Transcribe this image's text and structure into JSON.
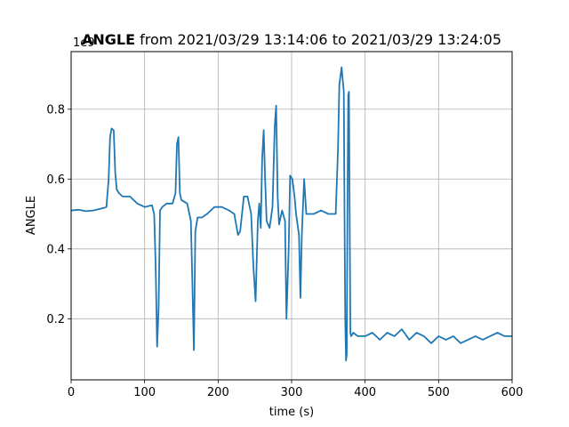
{
  "chart_data": {
    "type": "line",
    "title_bold": "ANGLE",
    "title_rest": " from 2021/03/29 13:14:06 to 2021/03/29 13:24:05",
    "xlabel": "time (s)",
    "ylabel": "ANGLE",
    "y_offset_label": "1e9",
    "xlim": [
      0,
      600
    ],
    "ylim": [
      0.025,
      0.965
    ],
    "xticks": [
      0,
      100,
      200,
      300,
      400,
      500,
      600
    ],
    "xtick_labels": [
      "0",
      "100",
      "200",
      "300",
      "400",
      "500",
      "600"
    ],
    "yticks": [
      0.2,
      0.4,
      0.6,
      0.8
    ],
    "ytick_labels": [
      "0.2",
      "0.4",
      "0.6",
      "0.8"
    ],
    "grid": true,
    "series": [
      {
        "color": "#1f77b4",
        "x": [
          0,
          10,
          20,
          30,
          40,
          48,
          51,
          53,
          55,
          58,
          60,
          62,
          65,
          70,
          80,
          90,
          100,
          110,
          113,
          115,
          117,
          119,
          121,
          124,
          130,
          138,
          142,
          144,
          146,
          148,
          150,
          158,
          163,
          165,
          167,
          169,
          172,
          178,
          185,
          195,
          205,
          215,
          222,
          227,
          230,
          235,
          240,
          245,
          248,
          251,
          254,
          256,
          258,
          260,
          262,
          264,
          266,
          270,
          274,
          277,
          279,
          281,
          283,
          287,
          291,
          293,
          296,
          298,
          301,
          304,
          306,
          310,
          312,
          314,
          317,
          320,
          330,
          340,
          350,
          360,
          363,
          365,
          368,
          371,
          372,
          373,
          374,
          375,
          376,
          377,
          378,
          379,
          380,
          381,
          384,
          390,
          400,
          410,
          420,
          430,
          440,
          450,
          460,
          470,
          480,
          490,
          500,
          510,
          520,
          530,
          540,
          550,
          560,
          570,
          580,
          590,
          600
        ],
        "y": [
          0.51,
          0.512,
          0.508,
          0.51,
          0.515,
          0.52,
          0.6,
          0.72,
          0.745,
          0.74,
          0.62,
          0.57,
          0.56,
          0.55,
          0.55,
          0.53,
          0.52,
          0.525,
          0.5,
          0.35,
          0.12,
          0.23,
          0.51,
          0.52,
          0.53,
          0.53,
          0.56,
          0.7,
          0.72,
          0.56,
          0.54,
          0.53,
          0.48,
          0.3,
          0.11,
          0.45,
          0.49,
          0.49,
          0.5,
          0.52,
          0.52,
          0.51,
          0.5,
          0.44,
          0.45,
          0.55,
          0.55,
          0.5,
          0.35,
          0.25,
          0.48,
          0.53,
          0.46,
          0.66,
          0.74,
          0.6,
          0.48,
          0.46,
          0.52,
          0.75,
          0.81,
          0.55,
          0.47,
          0.51,
          0.48,
          0.2,
          0.4,
          0.61,
          0.6,
          0.55,
          0.5,
          0.44,
          0.26,
          0.45,
          0.6,
          0.5,
          0.5,
          0.51,
          0.5,
          0.5,
          0.68,
          0.87,
          0.92,
          0.85,
          0.5,
          0.2,
          0.08,
          0.1,
          0.5,
          0.84,
          0.85,
          0.5,
          0.16,
          0.15,
          0.16,
          0.15,
          0.15,
          0.16,
          0.14,
          0.16,
          0.15,
          0.17,
          0.14,
          0.16,
          0.15,
          0.13,
          0.15,
          0.14,
          0.15,
          0.13,
          0.14,
          0.15,
          0.14,
          0.15,
          0.16,
          0.15,
          0.15
        ]
      }
    ]
  }
}
